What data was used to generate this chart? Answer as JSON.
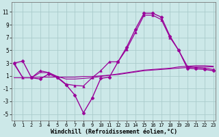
{
  "background_color": "#cce8e8",
  "grid_color": "#aacccc",
  "line_color": "#990099",
  "x_label": "Windchill (Refroidissement éolien,°C)",
  "yticks": [
    -5,
    -3,
    -1,
    1,
    3,
    5,
    7,
    9,
    11
  ],
  "xticks": [
    0,
    1,
    2,
    3,
    4,
    5,
    6,
    7,
    8,
    9,
    10,
    11,
    12,
    13,
    14,
    15,
    16,
    17,
    18,
    19,
    20,
    21,
    22,
    23
  ],
  "ylim": [
    -6,
    12.5
  ],
  "xlim": [
    -0.3,
    23.3
  ],
  "series": [
    {
      "x": [
        0,
        1,
        2,
        3,
        4,
        5,
        6,
        7,
        8,
        9,
        10,
        11,
        12,
        13,
        14,
        15,
        16,
        17,
        18,
        19,
        20,
        21,
        22,
        23
      ],
      "y": [
        3.0,
        3.3,
        0.7,
        0.5,
        1.3,
        0.7,
        -0.4,
        -2.0,
        -4.8,
        -2.5,
        0.6,
        0.8,
        3.2,
        5.5,
        8.3,
        10.8,
        10.8,
        10.2,
        7.2,
        5.0,
        2.2,
        2.1,
        2.0,
        1.8
      ],
      "marker": "D",
      "markersize": 2.5,
      "linewidth": 1.0,
      "linestyle": "-"
    },
    {
      "x": [
        0,
        1,
        2,
        3,
        4,
        5,
        6,
        7,
        8,
        9,
        10,
        11,
        12,
        13,
        14,
        15,
        16,
        17,
        18,
        19,
        20,
        21,
        22,
        23
      ],
      "y": [
        0.7,
        0.7,
        0.7,
        0.8,
        0.8,
        0.8,
        0.8,
        0.8,
        0.9,
        0.9,
        1.0,
        1.1,
        1.2,
        1.4,
        1.6,
        1.8,
        1.9,
        2.0,
        2.1,
        2.2,
        2.3,
        2.4,
        2.4,
        2.4
      ],
      "marker": "None",
      "markersize": 0,
      "linewidth": 0.8,
      "linestyle": "-"
    },
    {
      "x": [
        0,
        1,
        2,
        3,
        4,
        5,
        6,
        7,
        8,
        9,
        10,
        11,
        12,
        13,
        14,
        15,
        16,
        17,
        18,
        19,
        20,
        21,
        22,
        23
      ],
      "y": [
        2.8,
        0.7,
        0.7,
        1.5,
        1.5,
        0.9,
        0.5,
        0.5,
        0.6,
        0.7,
        0.9,
        1.1,
        1.3,
        1.5,
        1.7,
        1.9,
        2.0,
        2.1,
        2.2,
        2.4,
        2.5,
        2.6,
        2.6,
        2.5
      ],
      "marker": "None",
      "markersize": 0,
      "linewidth": 0.8,
      "linestyle": "-"
    },
    {
      "x": [
        0,
        1,
        2,
        3,
        4,
        5,
        6,
        7,
        8,
        9,
        10,
        11,
        12,
        13,
        14,
        15,
        16,
        17,
        18,
        19,
        20,
        21,
        22,
        23
      ],
      "y": [
        3.0,
        0.7,
        0.7,
        1.8,
        1.5,
        0.8,
        -0.3,
        -0.5,
        -0.6,
        0.7,
        1.8,
        3.2,
        3.2,
        5.2,
        7.8,
        10.5,
        10.5,
        9.8,
        7.0,
        5.0,
        2.5,
        2.3,
        2.2,
        2.0
      ],
      "marker": "^",
      "markersize": 2.5,
      "linewidth": 0.9,
      "linestyle": "-"
    }
  ]
}
